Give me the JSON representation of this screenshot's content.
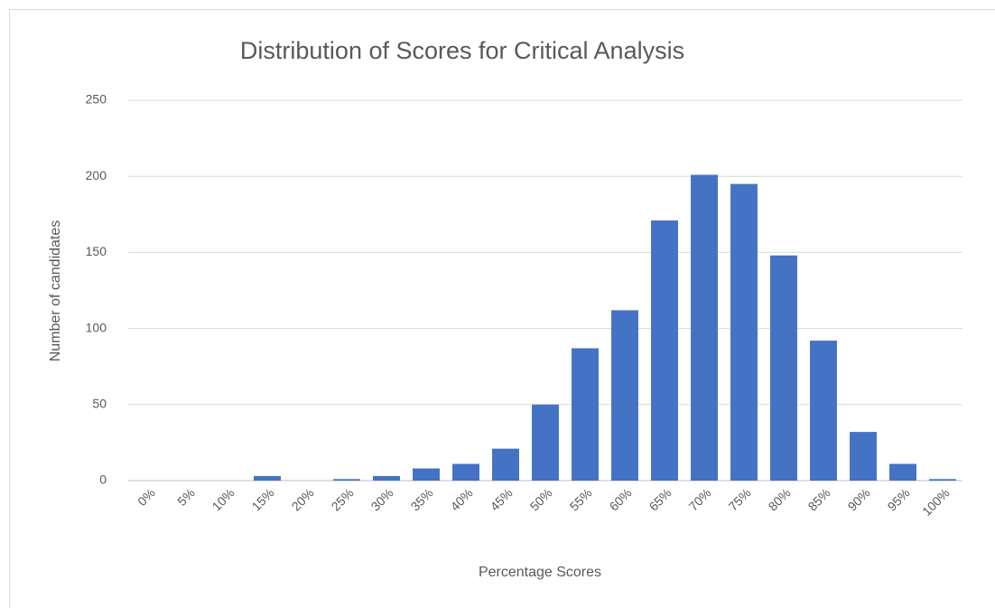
{
  "chart_data": {
    "type": "bar",
    "title": "Distribution of Scores for Critical Analysis",
    "x_label": "Percentage Scores",
    "y_label": "Number of candidates",
    "categories": [
      "0%",
      "5%",
      "10%",
      "15%",
      "20%",
      "25%",
      "30%",
      "35%",
      "40%",
      "45%",
      "50%",
      "55%",
      "60%",
      "65%",
      "70%",
      "75%",
      "80%",
      "85%",
      "90%",
      "95%",
      "100%"
    ],
    "values": [
      0,
      0,
      0,
      3,
      0,
      1,
      3,
      8,
      11,
      21,
      50,
      87,
      112,
      171,
      201,
      195,
      148,
      92,
      32,
      11,
      1
    ],
    "color": "#4472c4",
    "ylim": [
      0,
      250
    ],
    "yticks": [
      0,
      50,
      100,
      150,
      200,
      250
    ],
    "grid": true
  }
}
